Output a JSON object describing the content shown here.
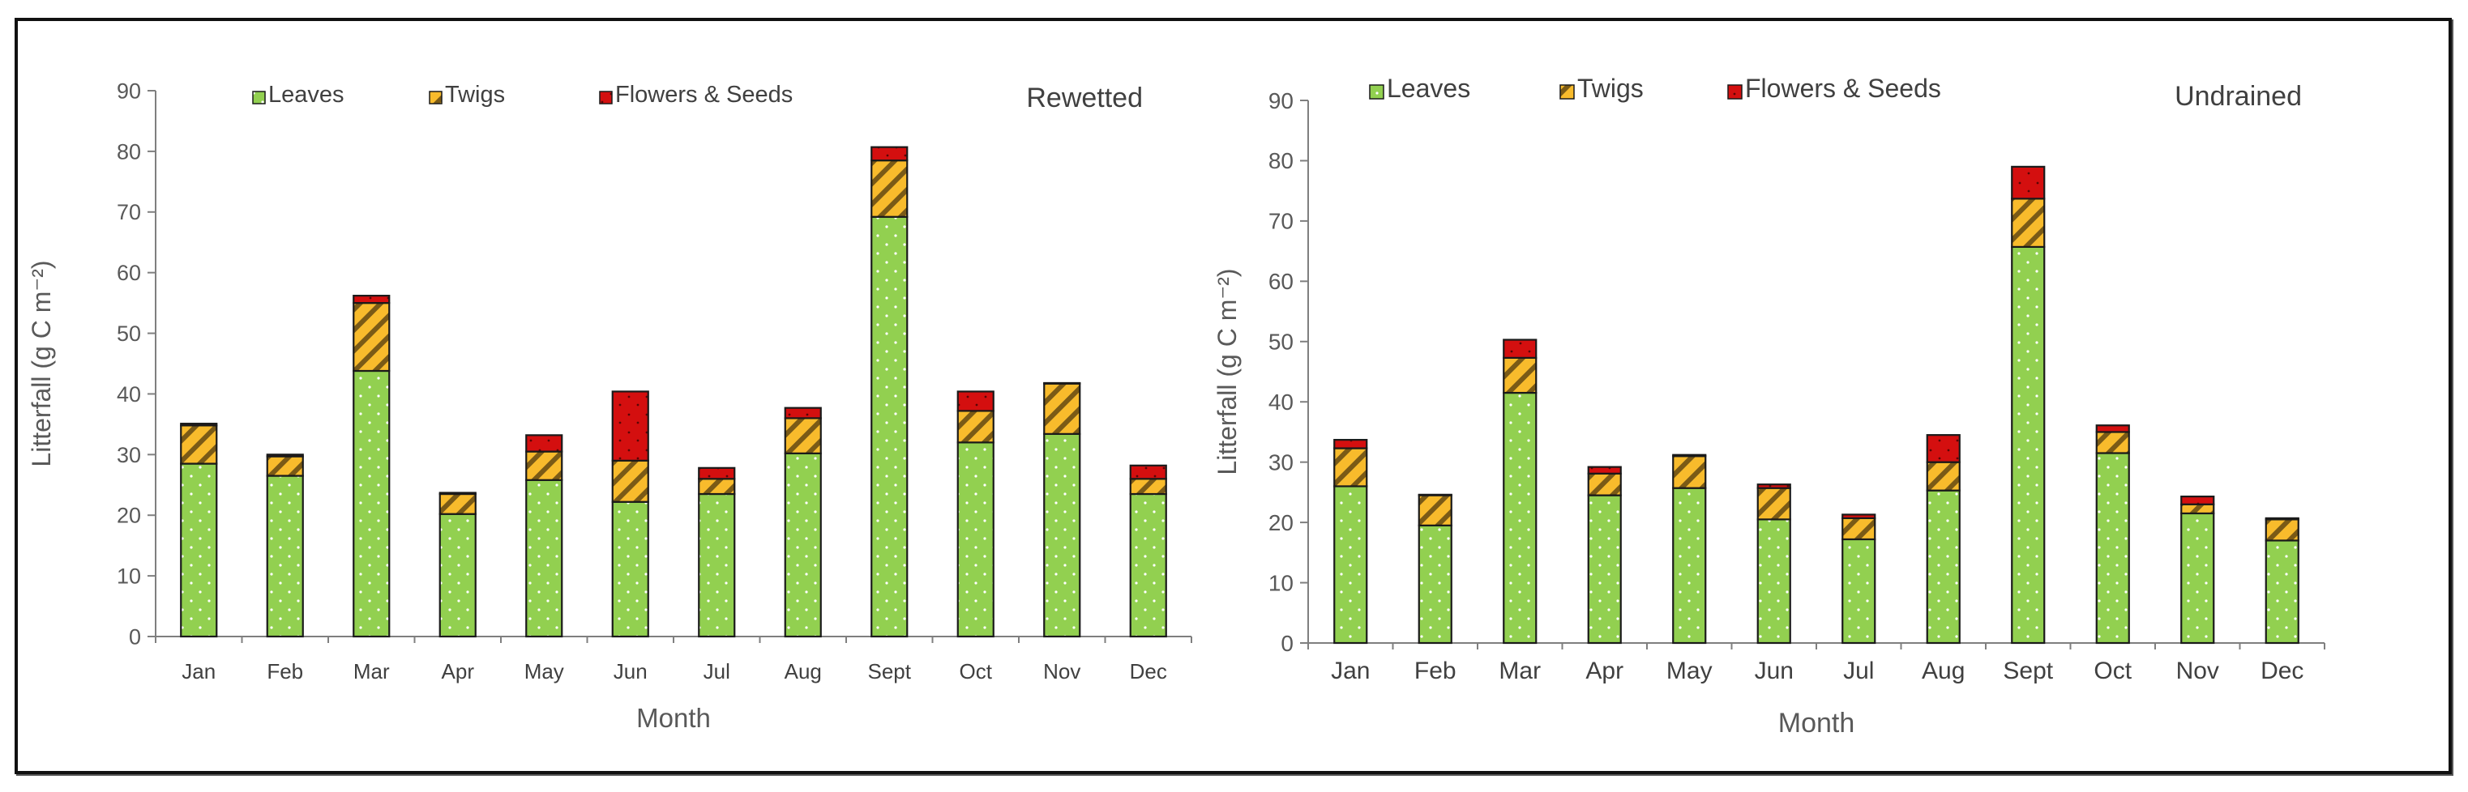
{
  "chart_data": [
    {
      "type": "bar",
      "stacked": true,
      "title": "Rewetted",
      "xlabel": "Month",
      "ylabel": "Litterfall (g C m⁻²)",
      "ylim": [
        0,
        90
      ],
      "yticks": [
        "0",
        "10",
        "20",
        "30",
        "40",
        "50",
        "60",
        "70",
        "80",
        "90"
      ],
      "categories": [
        "Jan",
        "Feb",
        "Mar",
        "Apr",
        "May",
        "Jun",
        "Jul",
        "Aug",
        "Sept",
        "Oct",
        "Nov",
        "Dec"
      ],
      "legend": [
        "Leaves",
        "Twigs",
        "Flowers & Seeds"
      ],
      "legend_position": "top",
      "series": [
        {
          "name": "Leaves",
          "values": [
            28.5,
            26.5,
            43.8,
            20.2,
            25.8,
            22.2,
            23.5,
            30.2,
            69.2,
            32.0,
            33.4,
            23.5
          ]
        },
        {
          "name": "Twigs",
          "values": [
            6.3,
            3.2,
            11.2,
            3.3,
            4.7,
            6.8,
            2.5,
            5.8,
            9.3,
            5.2,
            8.3,
            2.5
          ]
        },
        {
          "name": "Flowers & Seeds",
          "values": [
            0.3,
            0.3,
            1.2,
            0.2,
            2.7,
            11.4,
            1.8,
            1.7,
            2.2,
            3.2,
            0.1,
            2.2
          ]
        }
      ]
    },
    {
      "type": "bar",
      "stacked": true,
      "title": "Undrained",
      "xlabel": "Month",
      "ylabel": "Litterfall (g C m⁻²)",
      "ylim": [
        0,
        90
      ],
      "yticks": [
        "0",
        "10",
        "20",
        "30",
        "40",
        "50",
        "60",
        "70",
        "80",
        "90"
      ],
      "categories": [
        "Jan",
        "Feb",
        "Mar",
        "Apr",
        "May",
        "Jun",
        "Jul",
        "Aug",
        "Sept",
        "Oct",
        "Nov",
        "Dec"
      ],
      "legend": [
        "Leaves",
        "Twigs",
        "Flowers & Seeds"
      ],
      "legend_position": "top",
      "series": [
        {
          "name": "Leaves",
          "values": [
            26.0,
            19.5,
            41.5,
            24.5,
            25.7,
            20.5,
            17.2,
            25.3,
            65.7,
            31.5,
            21.5,
            17.0
          ]
        },
        {
          "name": "Twigs",
          "values": [
            6.3,
            5.0,
            5.8,
            3.6,
            5.3,
            5.2,
            3.5,
            4.7,
            8.0,
            3.5,
            1.5,
            3.5
          ]
        },
        {
          "name": "Flowers & Seeds",
          "values": [
            1.4,
            0.1,
            3.0,
            1.1,
            0.2,
            0.6,
            0.6,
            4.5,
            5.3,
            1.1,
            1.3,
            0.2
          ]
        }
      ]
    }
  ],
  "colors": {
    "leaves": "#92d050",
    "twigs": "#f8bb2c",
    "twigs_hatch": "#7a5a16",
    "flowers": "#d40f0f",
    "bar_outline": "#1a1a1a",
    "axis": "#7f7f7f"
  }
}
